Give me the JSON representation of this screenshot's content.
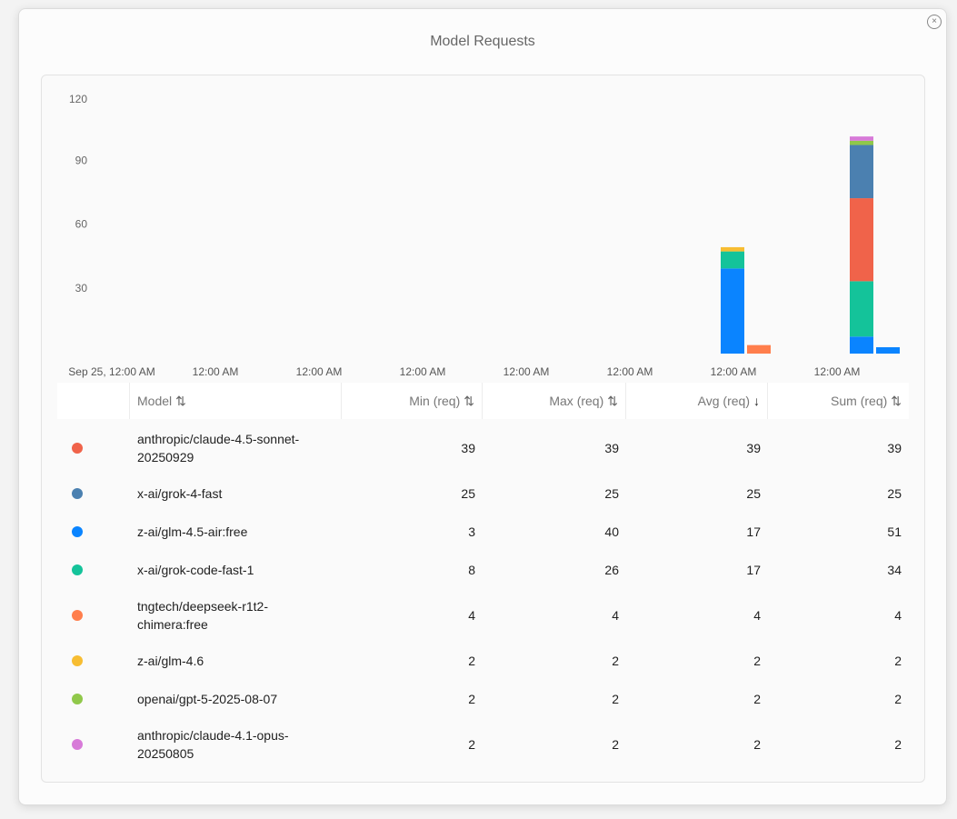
{
  "dialog": {
    "title": "Model Requests",
    "close_label": "×"
  },
  "chart_data": {
    "type": "bar",
    "stacked": true,
    "ylim": [
      0,
      120
    ],
    "yticks": [
      "120",
      "90",
      "60",
      "30"
    ],
    "xticks": [
      "Sep 25, 12:00 AM",
      "12:00 AM",
      "12:00 AM",
      "12:00 AM",
      "12:00 AM",
      "12:00 AM",
      "12:00 AM",
      "12:00 AM"
    ],
    "groups": [
      {
        "bars": [
          {
            "segments": [
              {
                "model": "z-ai/glm-4.5-air:free",
                "value": 40
              },
              {
                "model": "x-ai/grok-code-fast-1",
                "value": 8
              },
              {
                "model": "z-ai/glm-4.6",
                "value": 2
              }
            ]
          },
          {
            "segments": [
              {
                "model": "tngtech/deepseek-r1t2-chimera:free",
                "value": 4
              }
            ]
          }
        ]
      },
      {
        "bars": [
          {
            "segments": [
              {
                "model": "z-ai/glm-4.5-air:free",
                "value": 8
              },
              {
                "model": "x-ai/grok-code-fast-1",
                "value": 26
              },
              {
                "model": "anthropic/claude-4.5-sonnet-20250929",
                "value": 39
              },
              {
                "model": "x-ai/grok-4-fast",
                "value": 25
              },
              {
                "model": "openai/gpt-5-2025-08-07",
                "value": 2
              },
              {
                "model": "anthropic/claude-4.1-opus-20250805",
                "value": 2
              }
            ]
          },
          {
            "segments": [
              {
                "model": "z-ai/glm-4.5-air:free",
                "value": 3
              }
            ]
          }
        ]
      }
    ]
  },
  "table": {
    "headers": {
      "model": "Model",
      "min": "Min (req)",
      "max": "Max (req)",
      "avg": "Avg (req)",
      "sum": "Sum (req)"
    },
    "rows": [
      {
        "model": "anthropic/claude-4.5-sonnet-20250929",
        "line1": "anthropic/claude-4.5-sonnet-",
        "line2": "20250929",
        "color": "#f0634a",
        "min": "39",
        "max": "39",
        "avg": "39",
        "sum": "39"
      },
      {
        "model": "x-ai/grok-4-fast",
        "line1": "x-ai/grok-4-fast",
        "line2": "",
        "color": "#4b80b0",
        "min": "25",
        "max": "25",
        "avg": "25",
        "sum": "25"
      },
      {
        "model": "z-ai/glm-4.5-air:free",
        "line1": "z-ai/glm-4.5-air:free",
        "line2": "",
        "color": "#0a84ff",
        "min": "3",
        "max": "40",
        "avg": "17",
        "sum": "51"
      },
      {
        "model": "x-ai/grok-code-fast-1",
        "line1": "x-ai/grok-code-fast-1",
        "line2": "",
        "color": "#14c39a",
        "min": "8",
        "max": "26",
        "avg": "17",
        "sum": "34"
      },
      {
        "model": "tngtech/deepseek-r1t2-chimera:free",
        "line1": "tngtech/deepseek-r1t2-",
        "line2": "chimera:free",
        "color": "#ff7e4c",
        "min": "4",
        "max": "4",
        "avg": "4",
        "sum": "4"
      },
      {
        "model": "z-ai/glm-4.6",
        "line1": "z-ai/glm-4.6",
        "line2": "",
        "color": "#f7bd32",
        "min": "2",
        "max": "2",
        "avg": "2",
        "sum": "2"
      },
      {
        "model": "openai/gpt-5-2025-08-07",
        "line1": "openai/gpt-5-2025-08-07",
        "line2": "",
        "color": "#90c84a",
        "min": "2",
        "max": "2",
        "avg": "2",
        "sum": "2"
      },
      {
        "model": "anthropic/claude-4.1-opus-20250805",
        "line1": "anthropic/claude-4.1-opus-",
        "line2": "20250805",
        "color": "#d77ad8",
        "min": "2",
        "max": "2",
        "avg": "2",
        "sum": "2"
      }
    ]
  }
}
